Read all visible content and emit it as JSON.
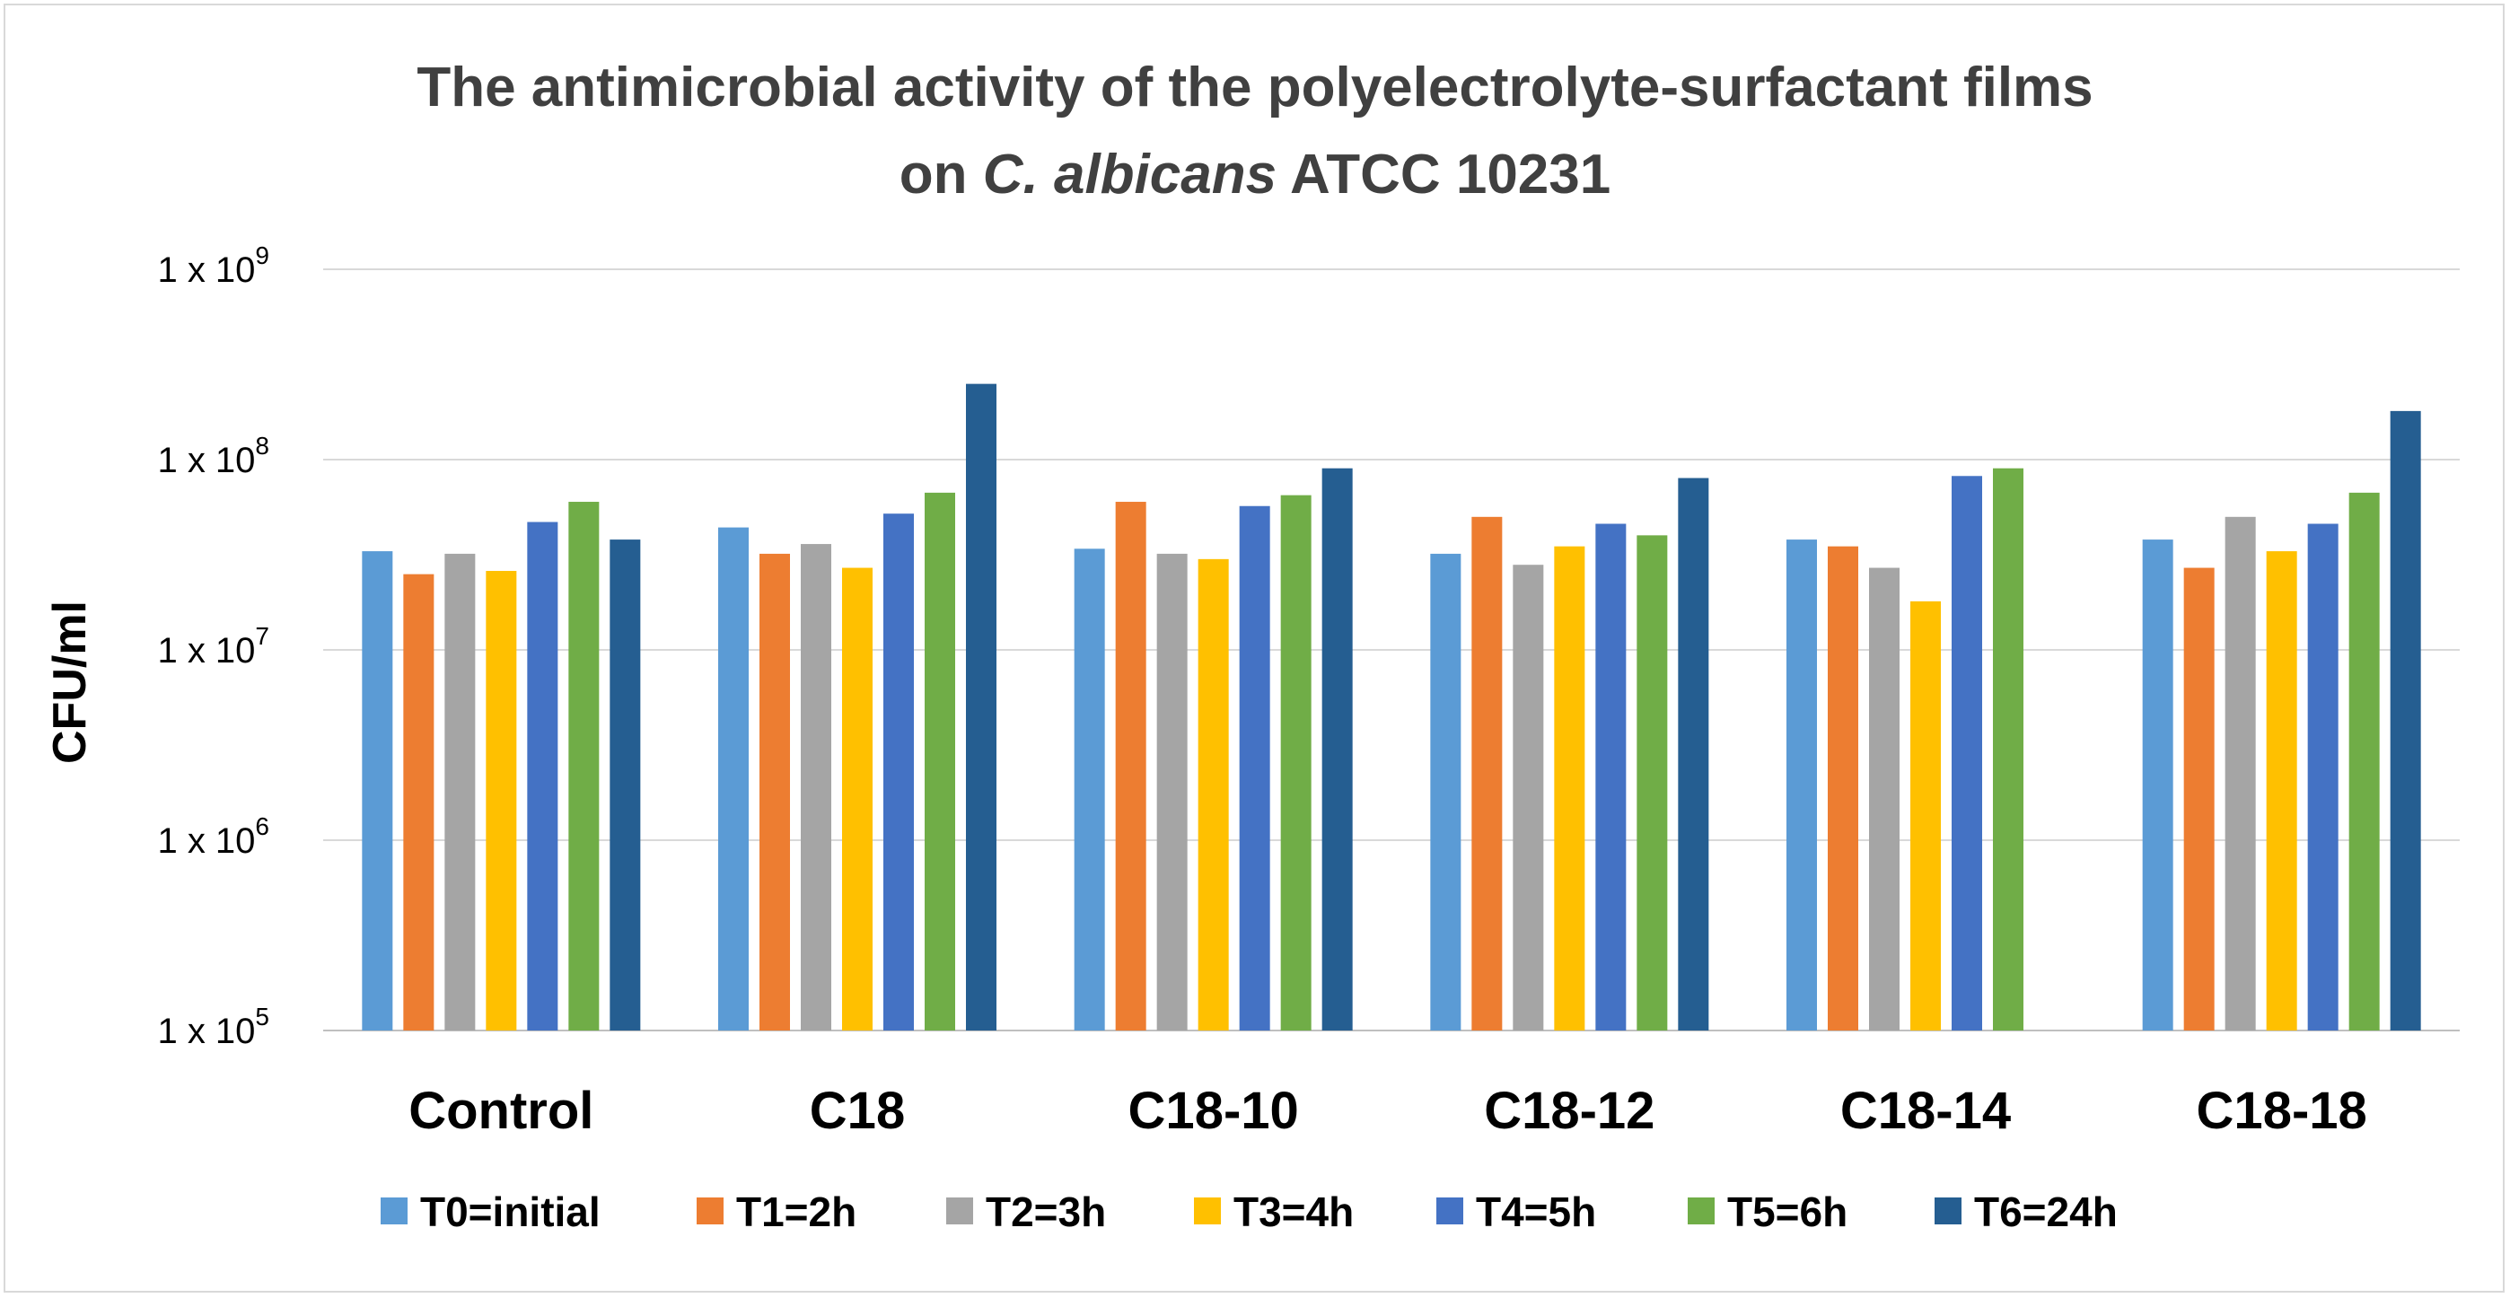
{
  "chart_data": {
    "type": "bar",
    "title_line1": "The antimicrobial activity of the polyelectrolyte-surfactant films",
    "title_line2_prefix": "on ",
    "title_line2_italic": "C. albicans",
    "title_line2_suffix": " ATCC 10231",
    "ylabel": "CFU/ml",
    "xlabel": "",
    "yscale": "log",
    "ylim": [
      100000,
      1000000000
    ],
    "ytick_prefix": "1 x 10",
    "yticks": [
      {
        "value": 100000,
        "exp": "5"
      },
      {
        "value": 1000000,
        "exp": "6"
      },
      {
        "value": 10000000,
        "exp": "7"
      },
      {
        "value": 100000000,
        "exp": "8"
      },
      {
        "value": 1000000000,
        "exp": "9"
      }
    ],
    "grid": true,
    "legend_position": "bottom",
    "categories": [
      "Control",
      "C18",
      "C18-10",
      "C18-12",
      "C18-14",
      "C18-18"
    ],
    "series": [
      {
        "name": "T0=initial",
        "color": "#5b9bd5",
        "values": [
          33000000,
          44000000,
          34000000,
          32000000,
          38000000,
          38000000
        ]
      },
      {
        "name": "T1=2h",
        "color": "#ed7d31",
        "values": [
          25000000,
          32000000,
          60000000,
          50000000,
          35000000,
          27000000
        ]
      },
      {
        "name": "T2=3h",
        "color": "#a5a5a5",
        "values": [
          32000000,
          36000000,
          32000000,
          28000000,
          27000000,
          50000000
        ]
      },
      {
        "name": "T3=4h",
        "color": "#ffc000",
        "values": [
          26000000,
          27000000,
          30000000,
          35000000,
          18000000,
          33000000
        ]
      },
      {
        "name": "T4=5h",
        "color": "#4472c4",
        "values": [
          47000000,
          52000000,
          57000000,
          46000000,
          82000000,
          46000000
        ]
      },
      {
        "name": "T5=6h",
        "color": "#70ad47",
        "values": [
          60000000,
          67000000,
          65000000,
          40000000,
          90000000,
          67000000
        ]
      },
      {
        "name": "T6=24h",
        "color": "#255e91",
        "values": [
          38000000,
          250000000,
          90000000,
          80000000,
          null,
          180000000
        ]
      }
    ]
  }
}
